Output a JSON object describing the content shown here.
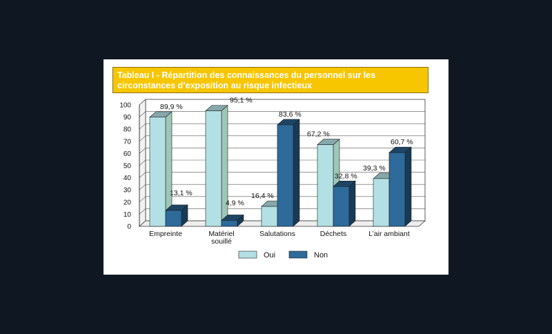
{
  "title_lines": [
    "Tableau I - Répartition des connaissances du personnel sur les",
    "circonstances d’exposition au risque infectieux"
  ],
  "colors": {
    "background": "#0f1822",
    "title_bg": "#f7c600",
    "oui": "#b3e0e4",
    "non": "#2e6a9a"
  },
  "chart_data": {
    "type": "bar",
    "title": "Tableau I - Répartition des connaissances du personnel sur les circonstances d’exposition au risque infectieux",
    "categories": [
      [
        "Empreinte"
      ],
      [
        "Matériel",
        "souillé"
      ],
      [
        "Salutations"
      ],
      [
        "Déchets"
      ],
      [
        "L’air ambiant"
      ]
    ],
    "series": [
      {
        "name": "Oui",
        "values": [
          89.9,
          95.1,
          16.4,
          67.2,
          39.3
        ],
        "labels": [
          "89,9 %",
          "95,1 %",
          "16,4 %",
          "67,2 %",
          "39,3 %"
        ]
      },
      {
        "name": "Non",
        "values": [
          13.1,
          4.9,
          83.6,
          32.8,
          60.7
        ],
        "labels": [
          "13,1 %",
          "4,9 %",
          "83,6 %",
          "32,8 %",
          "60,7 %"
        ]
      }
    ],
    "yticks": [
      "0",
      "10",
      "20",
      "30",
      "40",
      "50",
      "60",
      "70",
      "80",
      "90",
      "100"
    ],
    "ylim": [
      0,
      100
    ],
    "grid": true,
    "legend_position": "bottom"
  }
}
